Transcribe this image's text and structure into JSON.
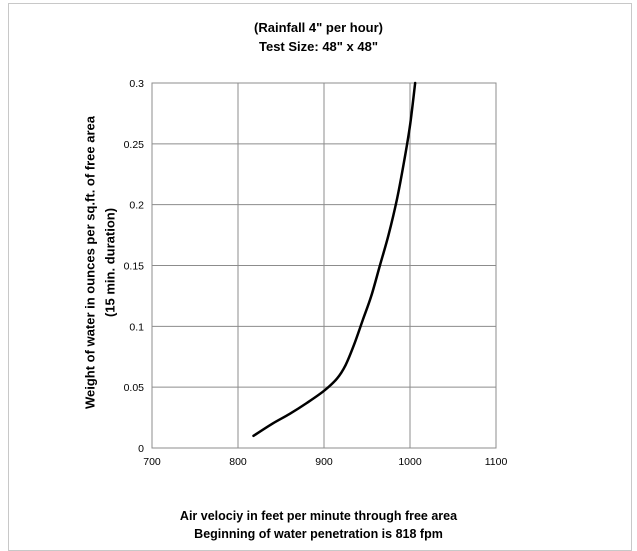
{
  "chart_data": {
    "type": "line",
    "title": "(Rainfall 4\" per hour)",
    "subtitle": "Test Size: 48\" x 48\"",
    "xlabel": "Air velociy in feet per minute through free area",
    "xlabel_line2": "Beginning of water penetration is 818 fpm",
    "ylabel": "Weight of water in ounces per sq.ft. of free area",
    "ylabel_line2": "(15 min. duration)",
    "xlim": [
      700,
      1100
    ],
    "ylim": [
      0,
      0.3
    ],
    "x_ticks": [
      "700",
      "800",
      "900",
      "1000",
      "1100"
    ],
    "y_ticks": [
      "0",
      "0.05",
      "0.1",
      "0.15",
      "0.2",
      "0.25",
      "0.3"
    ],
    "grid": true,
    "series": [
      {
        "x": [
          818,
          840,
          860,
          880,
          900,
          915,
          925,
          935,
          945,
          955,
          965,
          975,
          985,
          993,
          1000,
          1006
        ],
        "y": [
          0.01,
          0.02,
          0.028,
          0.037,
          0.047,
          0.057,
          0.068,
          0.085,
          0.105,
          0.125,
          0.15,
          0.175,
          0.205,
          0.235,
          0.265,
          0.3
        ],
        "color": "#000000"
      }
    ]
  }
}
